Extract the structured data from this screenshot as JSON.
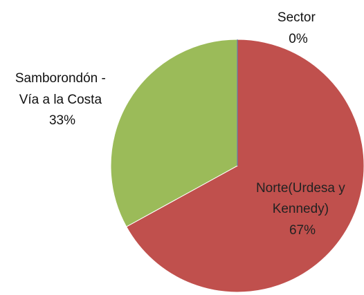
{
  "chart_data": {
    "type": "pie",
    "slices": [
      {
        "name": "Norte(Urdesa y Kennedy)",
        "value": 67,
        "color": "#c0504d"
      },
      {
        "name": "Samborondón - Vía a la Costa",
        "value": 33,
        "color": "#9bbb59"
      },
      {
        "name": "Sector",
        "value": 0,
        "color": "#4f81bd"
      }
    ],
    "labels": [
      {
        "lines": [
          "Norte(Urdesa y",
          "Kennedy)",
          "67%"
        ]
      },
      {
        "lines": [
          "Samborondón -",
          "Vía a la Costa",
          "33%"
        ]
      },
      {
        "lines": [
          "Sector",
          "0%"
        ]
      }
    ],
    "legend": "none"
  }
}
